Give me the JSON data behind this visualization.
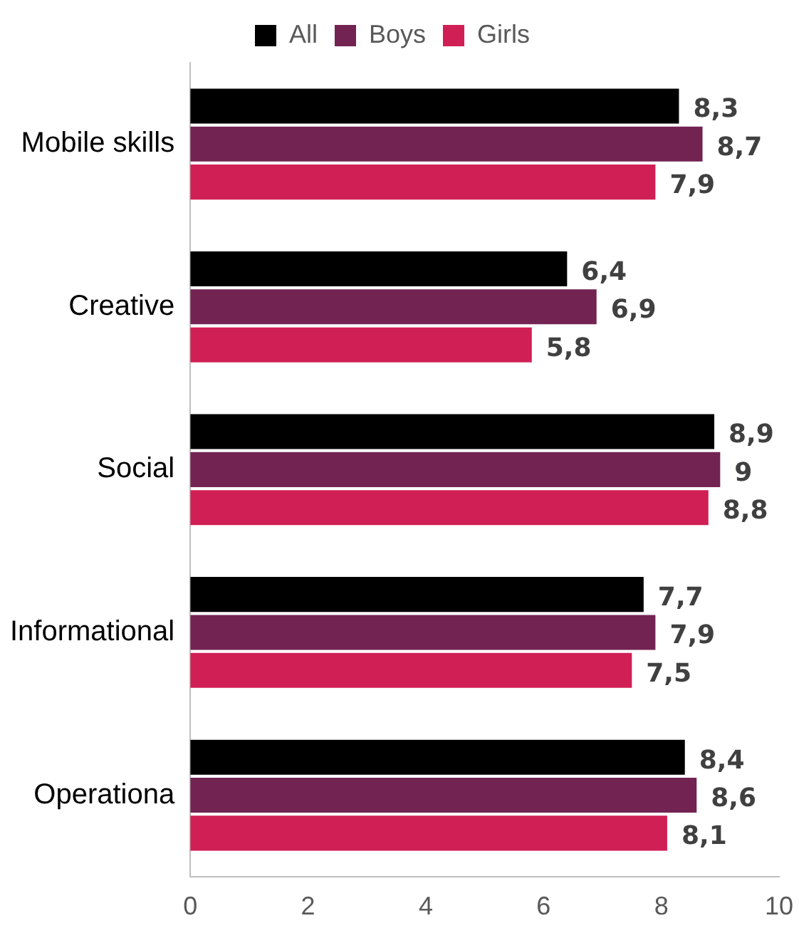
{
  "chart_data": {
    "type": "bar",
    "orientation": "horizontal",
    "categories": [
      "Mobile skills",
      "Creative",
      "Social",
      "Informational",
      "Operationa"
    ],
    "series": [
      {
        "name": "All",
        "color": "#000000",
        "values": [
          8.3,
          6.4,
          8.9,
          7.7,
          8.4
        ],
        "value_labels": [
          "8,3",
          "6,4",
          "8,9",
          "7,7",
          "8,4"
        ]
      },
      {
        "name": "Boys",
        "color": "#722352",
        "values": [
          8.7,
          6.9,
          9,
          7.9,
          8.6
        ],
        "value_labels": [
          "8,7",
          "6,9",
          "9",
          "7,9",
          "8,6"
        ]
      },
      {
        "name": "Girls",
        "color": "#d01f54",
        "values": [
          7.9,
          5.8,
          8.8,
          7.5,
          8.1
        ],
        "value_labels": [
          "7,9",
          "5,8",
          "8,8",
          "7,5",
          "8,1"
        ]
      }
    ],
    "xlim": [
      0,
      10
    ],
    "xticks": [
      0,
      2,
      4,
      6,
      8,
      10
    ],
    "grid": false,
    "legend": "top"
  }
}
